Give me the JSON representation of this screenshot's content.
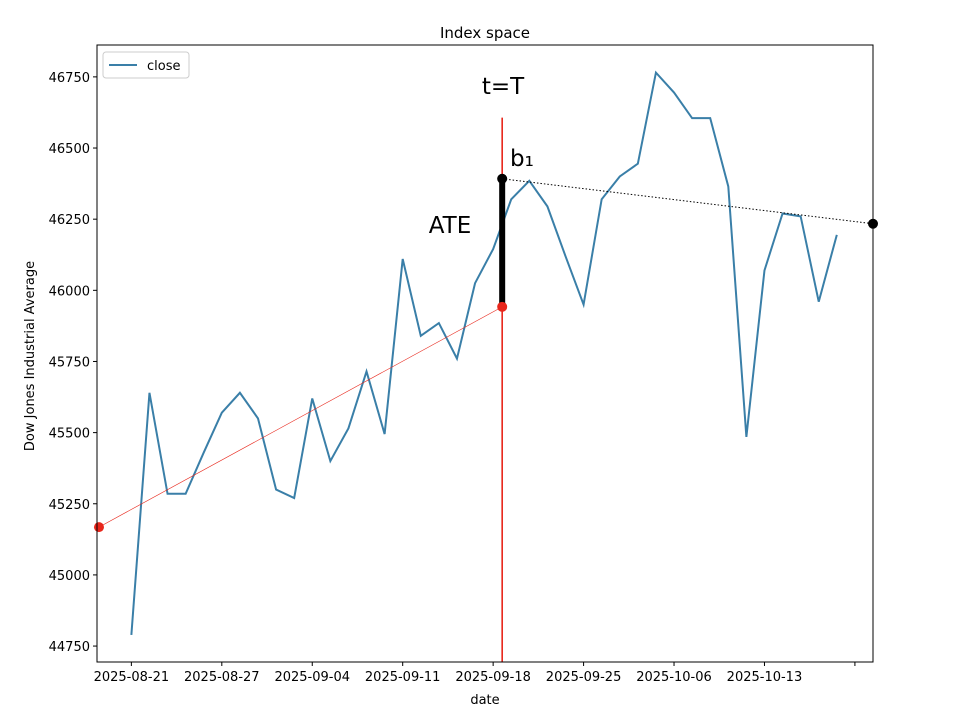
{
  "chart_data": {
    "type": "line",
    "title": "Index space",
    "xlabel": "date",
    "ylabel": "Dow Jones Industrial Average",
    "x": [
      0,
      1,
      2,
      3,
      4,
      5,
      6,
      7,
      8,
      9,
      10,
      11,
      12,
      13,
      14,
      15,
      16,
      17,
      18,
      19,
      20,
      21,
      22,
      23,
      24,
      25,
      26,
      27,
      28,
      29,
      30,
      31,
      32,
      33,
      34,
      35,
      36,
      37,
      38,
      39
    ],
    "series": [
      {
        "name": "close",
        "color": "#3a7fa8",
        "values": [
          44789,
          45640,
          45285,
          45285,
          45430,
          45570,
          45640,
          45550,
          45300,
          45270,
          45620,
          45400,
          45515,
          45715,
          45495,
          46110,
          45840,
          45885,
          45760,
          46025,
          46145,
          46320,
          46385,
          46295,
          46120,
          45950,
          46320,
          46400,
          46445,
          46765,
          46695,
          46605,
          46605,
          46365,
          45485,
          46070,
          46270,
          46260,
          45960,
          46195
        ]
      }
    ],
    "xlim": [
      -1.9,
      41
    ],
    "ylim": [
      44694,
      46862
    ],
    "xticks": [
      {
        "value": 0,
        "label": "2025-08-21"
      },
      {
        "value": 5,
        "label": "2025-08-27"
      },
      {
        "value": 10,
        "label": "2025-09-04"
      },
      {
        "value": 15,
        "label": "2025-09-11"
      },
      {
        "value": 20,
        "label": "2025-09-18"
      },
      {
        "value": 25,
        "label": "2025-09-25"
      },
      {
        "value": 30,
        "label": "2025-10-06"
      },
      {
        "value": 35,
        "label": "2025-10-13"
      },
      {
        "value": 40,
        "label": null
      }
    ],
    "yticks": [
      44750,
      45000,
      45250,
      45500,
      45750,
      46000,
      46250,
      46500,
      46750
    ],
    "legend": "upper left",
    "annotations": {
      "treatment_line": {
        "label": "t=T",
        "x": 20.5,
        "ymax": 46607,
        "color": "#e8261b"
      },
      "trend": {
        "x": [
          -1.79,
          20.5
        ],
        "y": [
          45168,
          45942
        ],
        "color": "#e8261b"
      },
      "effect": {
        "label": "ATE",
        "x": 20.5,
        "y": [
          45942,
          46392
        ],
        "color": "#000000"
      },
      "post_trend": {
        "label": "b₁",
        "x": [
          20.5,
          41
        ],
        "y": [
          46392,
          46234
        ],
        "color": "#000000"
      }
    }
  }
}
